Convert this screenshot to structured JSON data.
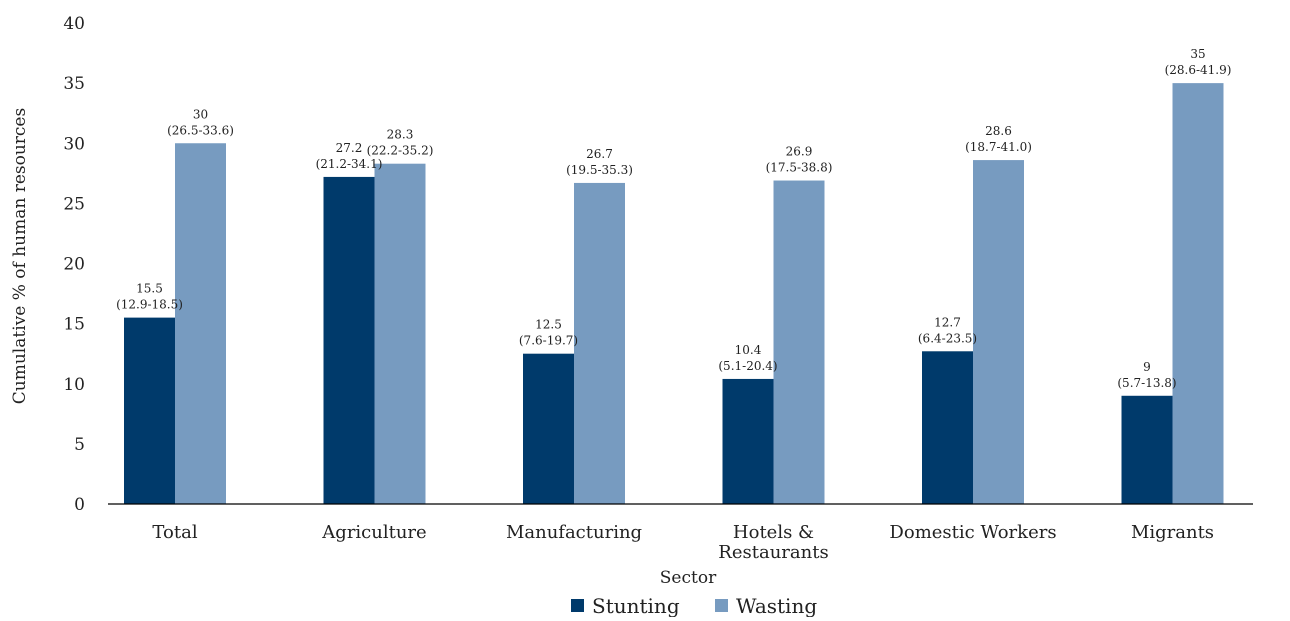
{
  "chart_data": {
    "type": "bar",
    "title": "",
    "xlabel": "Sector",
    "ylabel": "Cumulative % of human resources",
    "ylim": [
      0,
      40
    ],
    "yticks": [
      0,
      5,
      10,
      15,
      20,
      25,
      30,
      35,
      40
    ],
    "grid": false,
    "legend_position": "bottom",
    "categories": [
      [
        "Total"
      ],
      [
        "Agriculture"
      ],
      [
        "Manufacturing"
      ],
      [
        "Hotels &",
        "Restaurants"
      ],
      [
        "Domestic Workers"
      ],
      [
        "Migrants"
      ]
    ],
    "series": [
      {
        "name": "Stunting",
        "color": "#003a6b",
        "values": [
          15.5,
          27.2,
          12.5,
          10.4,
          12.7,
          9
        ],
        "labels": [
          [
            "15.5",
            "(12.9-18.5)"
          ],
          [
            "27.2",
            "(21.2-34.1)"
          ],
          [
            "12.5",
            "(7.6-19.7)"
          ],
          [
            "10.4",
            "(5.1-20.4)"
          ],
          [
            "12.7",
            "(6.4-23.5)"
          ],
          [
            "9",
            "(5.7-13.8)"
          ]
        ]
      },
      {
        "name": "Wasting",
        "color": "#779bc0",
        "values": [
          30,
          28.3,
          26.7,
          26.9,
          28.6,
          35
        ],
        "labels": [
          [
            "30",
            "(26.5-33.6)"
          ],
          [
            "28.3",
            "(22.2-35.2)"
          ],
          [
            "26.7",
            "(19.5-35.3)"
          ],
          [
            "26.9",
            "(17.5-38.8)"
          ],
          [
            "28.6",
            "(18.7-41.0)"
          ],
          [
            "35",
            "(28.6-41.9)"
          ]
        ]
      }
    ]
  }
}
